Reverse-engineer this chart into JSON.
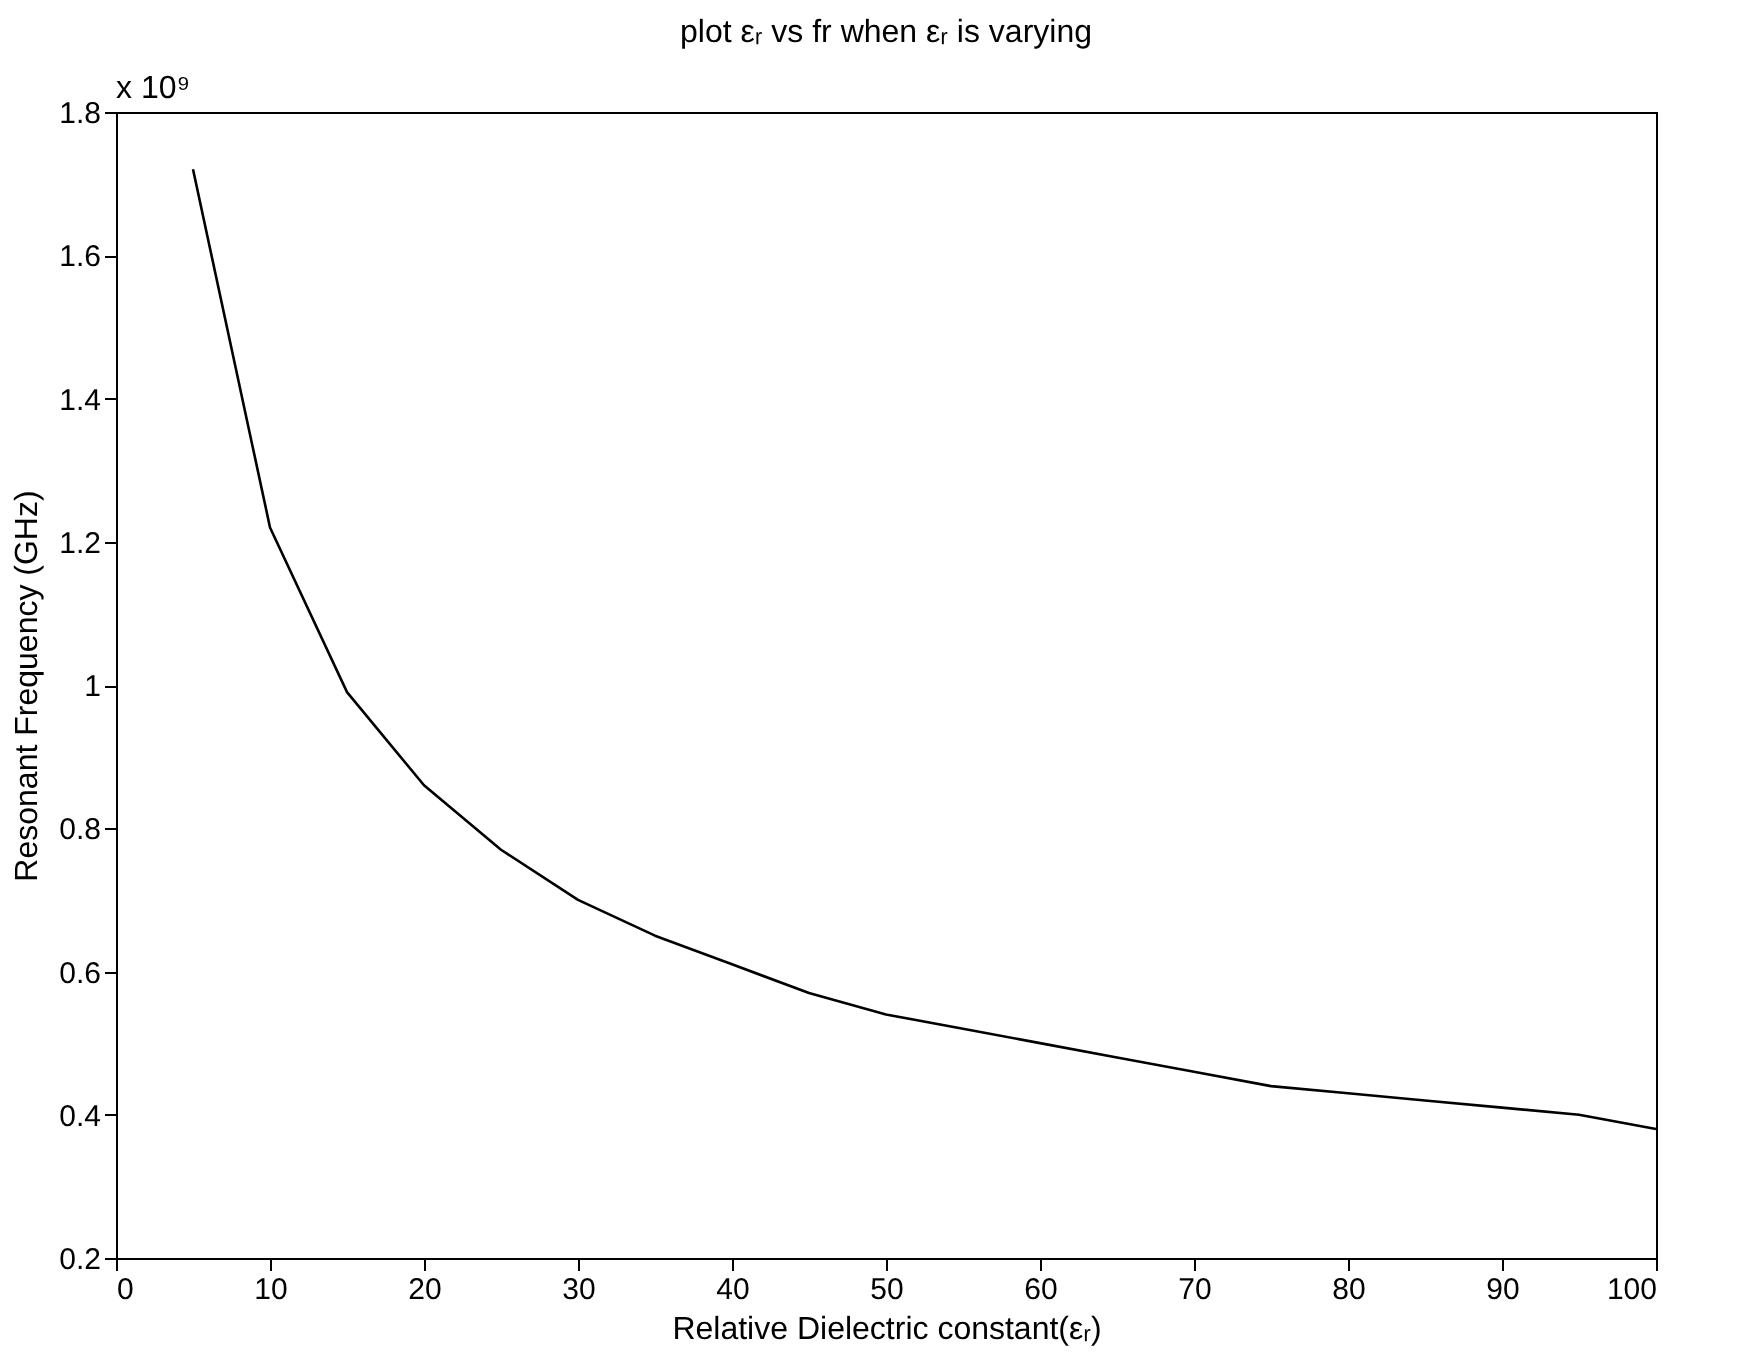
{
  "chart_data": {
    "type": "line",
    "title": "plot εᵣ vs fr when εᵣ  is varying",
    "xlabel": "Relative Dielectric constant(εᵣ)",
    "ylabel": "Resonant Frequency (GHz)",
    "annotations": [
      "x 10⁹"
    ],
    "x": [
      5,
      10,
      15,
      20,
      25,
      30,
      35,
      40,
      45,
      50,
      55,
      60,
      65,
      70,
      75,
      80,
      85,
      90,
      95,
      100
    ],
    "series": [
      {
        "color": "#000000",
        "values": [
          1.72,
          1.22,
          0.99,
          0.86,
          0.77,
          0.7,
          0.65,
          0.61,
          0.57,
          0.54,
          0.52,
          0.5,
          0.48,
          0.46,
          0.44,
          0.43,
          0.42,
          0.41,
          0.4,
          0.38
        ]
      }
    ],
    "xlim": [
      0,
      100
    ],
    "xticks": [
      0,
      10,
      20,
      30,
      40,
      50,
      60,
      70,
      80,
      90,
      100
    ],
    "ylim": [
      0.2,
      1.8
    ],
    "yticks": [
      0.2,
      0.4,
      0.6,
      0.8,
      1,
      1.2,
      1.4,
      1.6,
      1.8
    ],
    "grid": false,
    "marker": "none",
    "line_style": "solid"
  }
}
